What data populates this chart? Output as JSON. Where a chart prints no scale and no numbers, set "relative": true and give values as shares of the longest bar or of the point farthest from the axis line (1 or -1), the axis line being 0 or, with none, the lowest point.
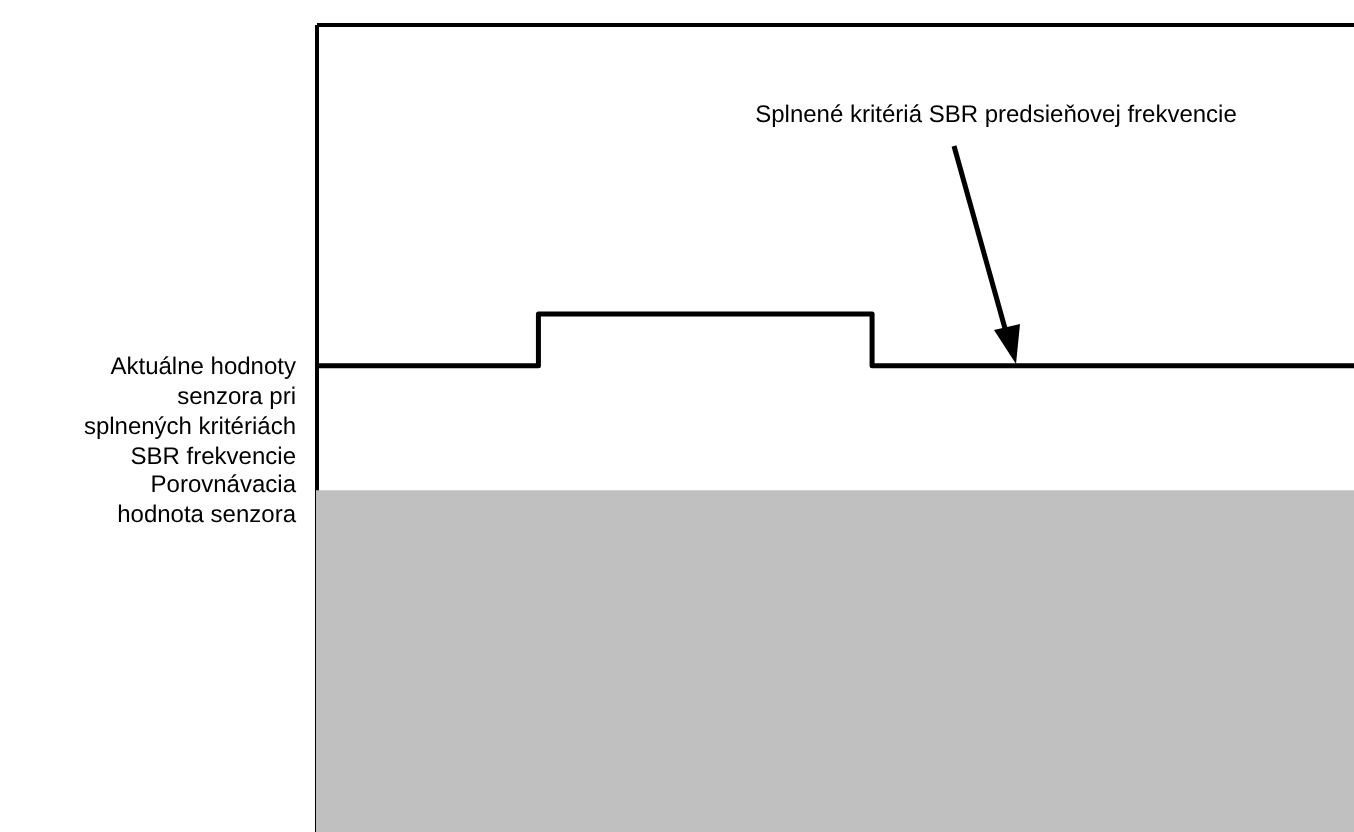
{
  "chart_data": {
    "type": "step",
    "relative": true,
    "categories": [
      null,
      null,
      null,
      null,
      null,
      null,
      null,
      null,
      null,
      null,
      null,
      null,
      null,
      null,
      null,
      null,
      null,
      null,
      null,
      null,
      null,
      null,
      null,
      null,
      null,
      null,
      null,
      null,
      null
    ],
    "series": [
      {
        "color": "#000000",
        "values": [
          0.9,
          0.9,
          0.9,
          0.9,
          0.9,
          0.9,
          1,
          1,
          1,
          1,
          1,
          1,
          1,
          1,
          1,
          0.9,
          0.9,
          0.9,
          0.9,
          0.9,
          0.9,
          0.9,
          0.9,
          0.9,
          0.9,
          0.9,
          0.9,
          0.9,
          0.9
        ]
      }
    ],
    "bands": [
      {
        "axis": "y",
        "from": 0,
        "to": 0.66,
        "label": "Porovnávacia hodnota senzora",
        "color": "#c0c0c0"
      }
    ],
    "annotations": [
      "Splnené kritériá SBR predsieňovej frekvencie",
      "Aktuálne hodnoty senzora pri splnených kritériách SBR frekvencie"
    ]
  }
}
